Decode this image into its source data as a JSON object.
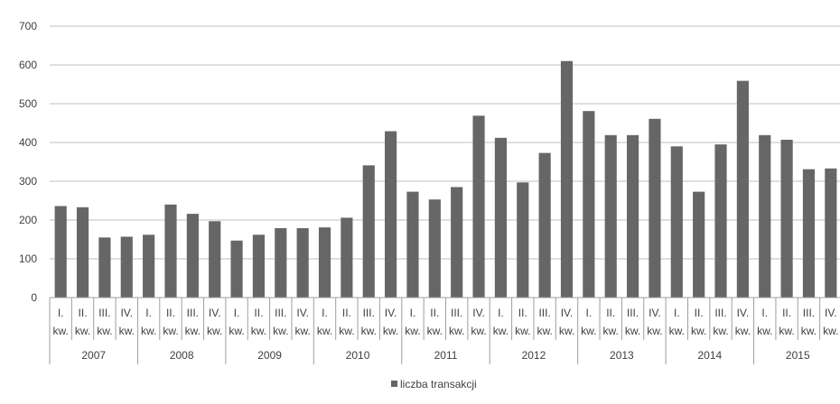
{
  "chart_data": {
    "type": "bar",
    "title": "",
    "xlabel": "",
    "ylabel": "",
    "ylim": [
      0,
      700
    ],
    "yticks": [
      0,
      100,
      200,
      300,
      400,
      500,
      600,
      700
    ],
    "grid": true,
    "legend_position": "bottom",
    "bar_color": "#666666",
    "quarter_labels": [
      "I.",
      "II.",
      "III.",
      "IV."
    ],
    "quarter_suffix": "kw.",
    "years": [
      "2007",
      "2008",
      "2009",
      "2010",
      "2011",
      "2012",
      "2013",
      "2014",
      "2015"
    ],
    "series": [
      {
        "name": "liczba transakcji",
        "values": [
          236,
          233,
          155,
          157,
          162,
          240,
          216,
          197,
          147,
          162,
          179,
          179,
          181,
          206,
          341,
          429,
          273,
          253,
          285,
          469,
          412,
          297,
          373,
          610,
          481,
          419,
          419,
          461,
          390,
          273,
          395,
          559,
          419,
          407,
          331,
          333
        ]
      }
    ]
  }
}
